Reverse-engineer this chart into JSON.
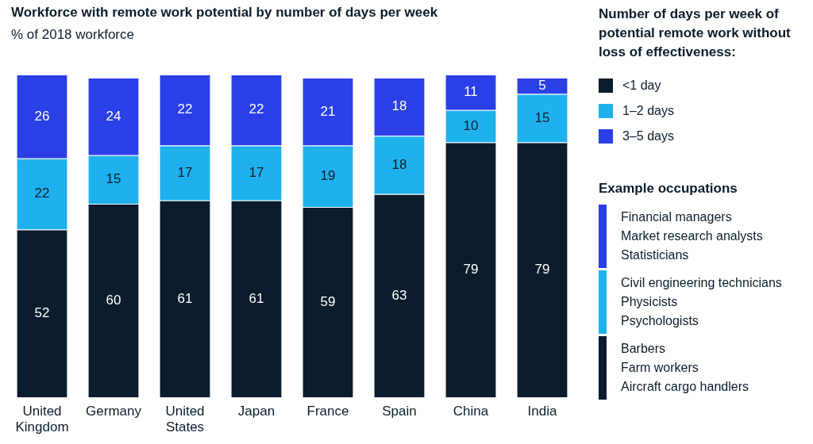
{
  "chart_data": {
    "type": "bar",
    "title": "Workforce with remote work potential by number of days per week",
    "subtitle": "% of 2018 workforce",
    "categories": [
      "United Kingdom",
      "Germany",
      "United States",
      "Japan",
      "France",
      "Spain",
      "China",
      "India"
    ],
    "stacked": true,
    "data_labels": true,
    "ylim": [
      0,
      100
    ],
    "tick_labels": "x",
    "grid": false,
    "legend": "right",
    "legend_title": "Number of days per week of potential remote work without loss of effectiveness:",
    "series": [
      {
        "name": "<1 day",
        "color": "#0b1c2c",
        "values": [
          52,
          60,
          61,
          61,
          59,
          63,
          79,
          79
        ]
      },
      {
        "name": "1–2 days",
        "color": "#1eb1ed",
        "values": [
          22,
          15,
          17,
          17,
          19,
          18,
          10,
          15
        ]
      },
      {
        "name": "3–5 days",
        "color": "#2a3fe6",
        "values": [
          26,
          24,
          22,
          22,
          21,
          18,
          11,
          5
        ]
      }
    ],
    "annotations": [
      "Example occupations",
      "Financial managers\nMarket research analysts\nStatisticians",
      "Civil engineering technicians\nPhysicists\nPsychologists",
      "Barbers\nFarm workers\nAircraft cargo handlers"
    ]
  }
}
